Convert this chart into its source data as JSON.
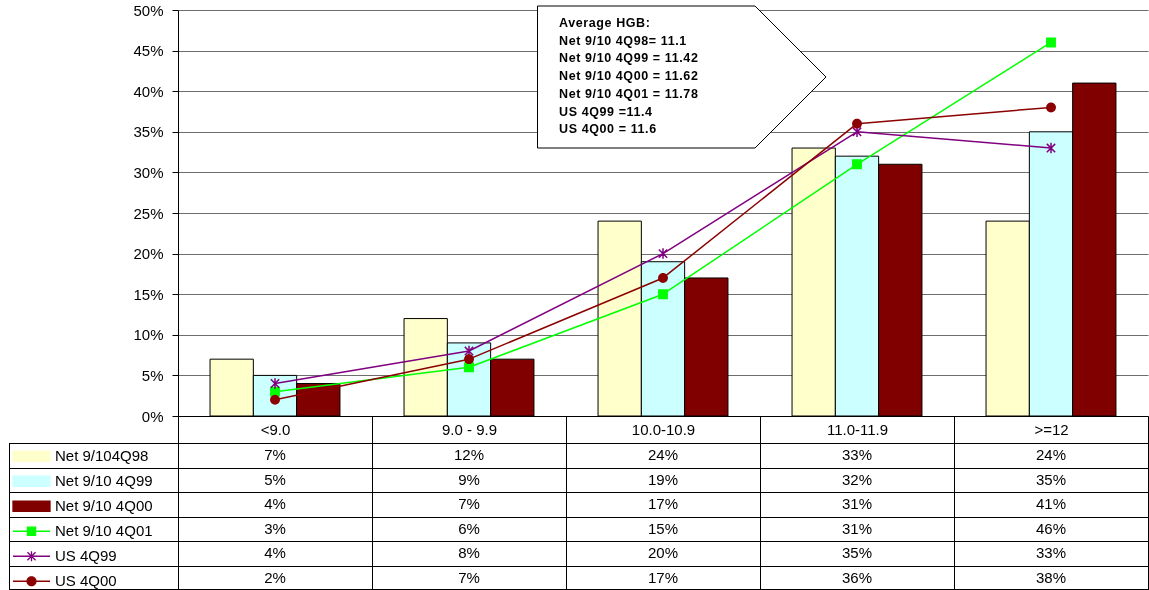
{
  "chart_data": {
    "type": "bar",
    "categories": [
      "<9.0",
      "9.0 - 9.9",
      "10.0-10.9",
      "11.0-11.9",
      ">=12"
    ],
    "series": [
      {
        "name": "Net 9/104Q98",
        "color": "#ffffcc",
        "values": [
          7,
          12,
          24,
          33,
          24
        ],
        "value_labels": [
          "7%",
          "12%",
          "24%",
          "33%",
          "24%"
        ]
      },
      {
        "name": "Net 9/10 4Q99",
        "color": "#ccffff",
        "values": [
          5,
          9,
          19,
          32,
          35
        ],
        "value_labels": [
          "5%",
          "9%",
          "19%",
          "32%",
          "35%"
        ]
      },
      {
        "name": "Net 9/10 4Q00",
        "color": "#800000",
        "values": [
          4,
          7,
          17,
          31,
          41
        ],
        "value_labels": [
          "4%",
          "7%",
          "17%",
          "31%",
          "41%"
        ]
      },
      {
        "name": "Net 9/10 4Q01",
        "type": "line",
        "color": "#00ff00",
        "marker": "square",
        "values": [
          3,
          6,
          15,
          31,
          46
        ],
        "value_labels": [
          "3%",
          "6%",
          "15%",
          "31%",
          "46%"
        ]
      },
      {
        "name": "US 4Q99",
        "type": "line",
        "color": "#800080",
        "marker": "cross",
        "values": [
          4,
          8,
          20,
          35,
          33
        ],
        "value_labels": [
          "4%",
          "8%",
          "20%",
          "35%",
          "33%"
        ]
      },
      {
        "name": "US 4Q00",
        "type": "line",
        "color": "#8b0000",
        "marker": "circle",
        "values": [
          2,
          7,
          17,
          36,
          38
        ],
        "value_labels": [
          "2%",
          "7%",
          "17%",
          "36%",
          "38%"
        ]
      }
    ],
    "ylim": [
      0,
      50
    ],
    "yticks": [
      {
        "value": 0,
        "label": "0%"
      },
      {
        "value": 5,
        "label": "5%"
      },
      {
        "value": 10,
        "label": "10%"
      },
      {
        "value": 15,
        "label": "15%"
      },
      {
        "value": 20,
        "label": "20%"
      },
      {
        "value": 25,
        "label": "25%"
      },
      {
        "value": 30,
        "label": "30%"
      },
      {
        "value": 35,
        "label": "35%"
      },
      {
        "value": 40,
        "label": "40%"
      },
      {
        "value": 45,
        "label": "45%"
      },
      {
        "value": 50,
        "label": "50%"
      }
    ],
    "grid": "y",
    "legend": "bottom",
    "annotations": [
      "Average HGB:",
      "Net 9/10 4Q98= 11.1",
      "Net 9/10 4Q99 = 11.42",
      "Net 9/10 4Q00 = 11.62",
      "Net 9/10 4Q01 = 11.78",
      "US 4Q99 =11.4",
      "US 4Q00 = 11.6"
    ]
  }
}
